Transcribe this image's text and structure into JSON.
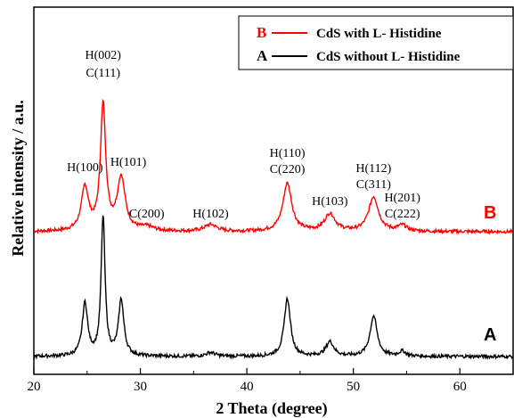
{
  "chart_data": {
    "type": "line",
    "xlabel": "2 Theta (degree)",
    "ylabel": "Relative intensity / a.u.",
    "xlim": [
      20,
      65
    ],
    "xticks": [
      20,
      30,
      40,
      50,
      60
    ],
    "yticks_shown": false,
    "legend_position": "top-right",
    "legend": [
      {
        "key": "B",
        "label": "CdS with L- Histidine",
        "color": "#ff0000"
      },
      {
        "key": "A",
        "label": "CdS without L- Histidine",
        "color": "#000000"
      }
    ],
    "series": [
      {
        "name": "B",
        "color": "#ff0000",
        "baseline": 1.0,
        "peaks": [
          {
            "x": 24.8,
            "height": 0.45,
            "width": 0.4
          },
          {
            "x": 26.5,
            "height": 1.3,
            "width": 0.3
          },
          {
            "x": 28.2,
            "height": 0.55,
            "width": 0.45
          },
          {
            "x": 30.6,
            "height": 0.04,
            "width": 0.8
          },
          {
            "x": 36.6,
            "height": 0.07,
            "width": 0.7
          },
          {
            "x": 43.8,
            "height": 0.5,
            "width": 0.5
          },
          {
            "x": 47.8,
            "height": 0.18,
            "width": 0.6
          },
          {
            "x": 51.9,
            "height": 0.36,
            "width": 0.55
          },
          {
            "x": 54.6,
            "height": 0.06,
            "width": 0.5
          }
        ]
      },
      {
        "name": "A",
        "color": "#000000",
        "baseline": 0.0,
        "peaks": [
          {
            "x": 24.8,
            "height": 0.55,
            "width": 0.3
          },
          {
            "x": 26.5,
            "height": 1.45,
            "width": 0.22
          },
          {
            "x": 28.2,
            "height": 0.58,
            "width": 0.3
          },
          {
            "x": 36.6,
            "height": 0.04,
            "width": 0.5
          },
          {
            "x": 43.8,
            "height": 0.6,
            "width": 0.35
          },
          {
            "x": 47.8,
            "height": 0.15,
            "width": 0.45
          },
          {
            "x": 51.9,
            "height": 0.42,
            "width": 0.4
          },
          {
            "x": 54.6,
            "height": 0.05,
            "width": 0.4
          }
        ]
      }
    ],
    "peak_labels": [
      {
        "line1": "H(100)",
        "line2": "",
        "x": 24.8
      },
      {
        "line1": "H(002)",
        "line2": "C(111)",
        "x": 26.5
      },
      {
        "line1": "H(101)",
        "line2": "",
        "x": 28.2
      },
      {
        "line1": "C(200)",
        "line2": "",
        "x": 30.6
      },
      {
        "line1": "H(102)",
        "line2": "",
        "x": 36.6
      },
      {
        "line1": "H(110)",
        "line2": "C(220)",
        "x": 43.8
      },
      {
        "line1": "H(103)",
        "line2": "",
        "x": 47.8
      },
      {
        "line1": "H(112)",
        "line2": "C(311)",
        "x": 51.9
      },
      {
        "line1": "H(201)",
        "line2": "C(222)",
        "x": 54.6
      }
    ],
    "curve_labels": [
      {
        "text": "B",
        "color": "#ff0000"
      },
      {
        "text": "A",
        "color": "#000000"
      }
    ]
  }
}
